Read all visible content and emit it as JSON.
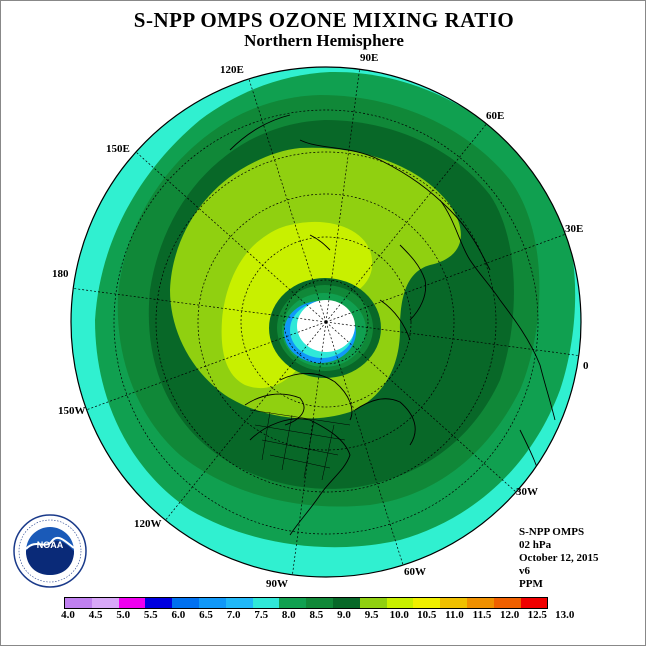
{
  "title": "S-NPP OMPS OZONE MIXING RATIO",
  "subtitle": "Northern Hemisphere",
  "longitude_labels": [
    "90E",
    "60E",
    "30E",
    "0",
    "30W",
    "60W",
    "90W",
    "120W",
    "150W",
    "180",
    "150E",
    "120E"
  ],
  "info": {
    "instrument": "S-NPP OMPS",
    "level": "02 hPa",
    "date": "October 12, 2015",
    "version": "v6",
    "units": "PPM"
  },
  "colorbar": {
    "ticks": [
      "4.0",
      "4.5",
      "5.0",
      "5.5",
      "6.0",
      "6.5",
      "7.0",
      "7.5",
      "8.0",
      "8.5",
      "9.0",
      "9.5",
      "10.0",
      "10.5",
      "11.0",
      "11.5",
      "12.0",
      "12.5",
      "13.0"
    ],
    "colors": [
      "#c080f0",
      "#d8a8f8",
      "#f000f0",
      "#0000e0",
      "#0070f0",
      "#1098f8",
      "#20b8f8",
      "#30e8d8",
      "#10a050",
      "#108838",
      "#086828",
      "#90d010",
      "#c8f000",
      "#f0f000",
      "#f0c000",
      "#f09000",
      "#f06000",
      "#f00000",
      "#906040"
    ]
  },
  "map": {
    "outer_color": "#30f0d0",
    "ring_colors": [
      "#10a050",
      "#108838",
      "#086828",
      "#90d010",
      "#c8f000"
    ],
    "polar_cap_color": "#ffffff",
    "polar_edge_color": "#1098f8"
  }
}
